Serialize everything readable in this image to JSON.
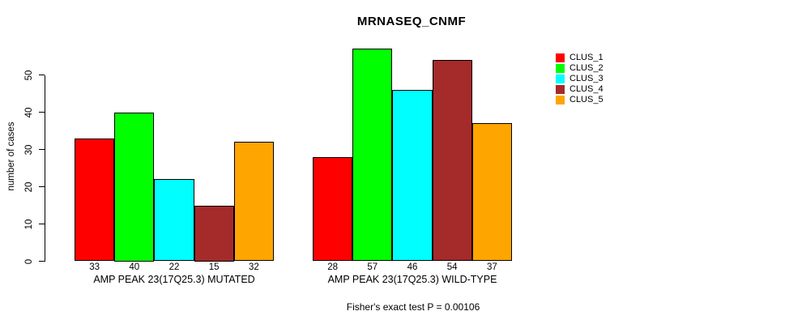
{
  "chart_data": {
    "type": "bar",
    "title": "MRNASEQ_CNMF",
    "ylabel": "number of cases",
    "footnote": "Fisher's exact test P = 0.00106",
    "ylim": [
      0,
      50
    ],
    "yticks": [
      0,
      10,
      20,
      30,
      40,
      50
    ],
    "grid": false,
    "legend_position": "right",
    "bar_border_color": "#000000",
    "background_color": "#ffffff",
    "series": [
      {
        "name": "CLUS_1",
        "color": "#ff0000"
      },
      {
        "name": "CLUS_2",
        "color": "#00ff00"
      },
      {
        "name": "CLUS_3",
        "color": "#00ffff"
      },
      {
        "name": "CLUS_4",
        "color": "#a52a2a"
      },
      {
        "name": "CLUS_5",
        "color": "#ffa500"
      }
    ],
    "groups": [
      {
        "label": "AMP PEAK 23(17Q25.3) MUTATED",
        "values": [
          33,
          40,
          22,
          15,
          32
        ]
      },
      {
        "label": "AMP PEAK 23(17Q25.3) WILD-TYPE",
        "values": [
          28,
          57,
          46,
          54,
          37
        ]
      }
    ]
  }
}
